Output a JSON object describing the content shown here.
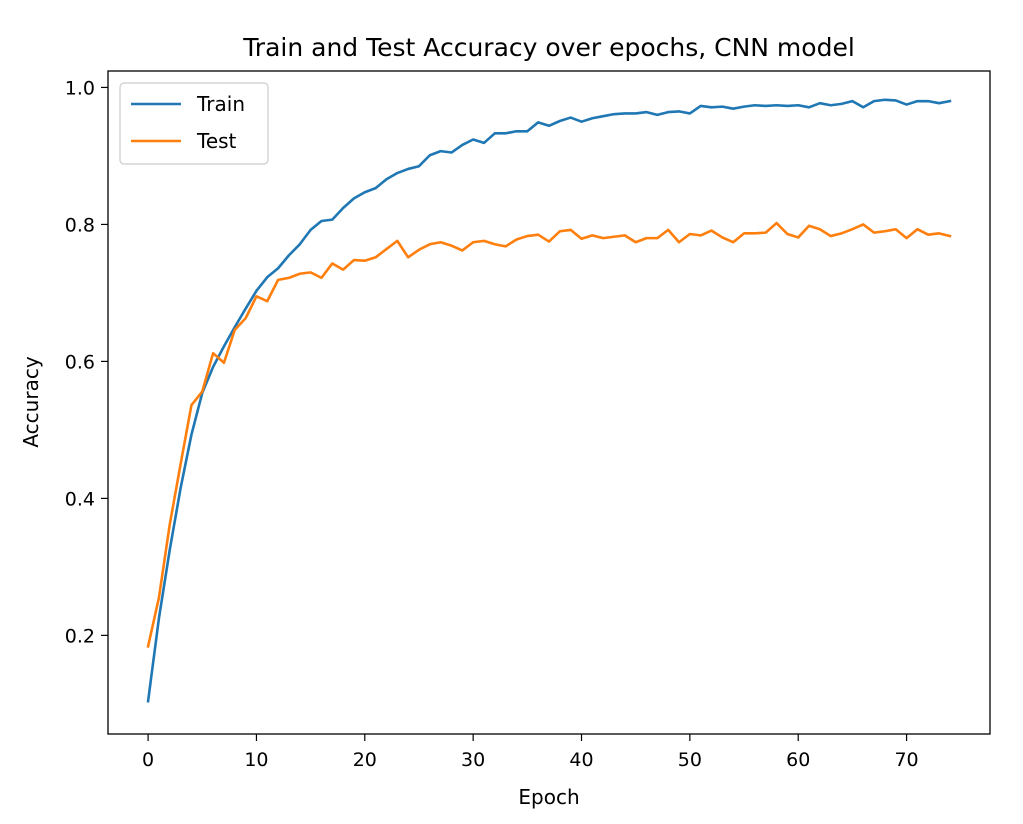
{
  "chart_data": {
    "type": "line",
    "title": "Train and Test Accuracy over epochs, CNN model",
    "xlabel": "Epoch",
    "ylabel": "Accuracy",
    "xlim": [
      -3.7,
      77.7
    ],
    "ylim": [
      0.056,
      1.024
    ],
    "xticks": [
      0,
      10,
      20,
      30,
      40,
      50,
      60,
      70
    ],
    "yticks": [
      0.2,
      0.4,
      0.6,
      0.8,
      1.0
    ],
    "xtick_labels": [
      "0",
      "10",
      "20",
      "30",
      "40",
      "50",
      "60",
      "70"
    ],
    "ytick_labels": [
      "0.2",
      "0.4",
      "0.6",
      "0.8",
      "1.0"
    ],
    "grid": false,
    "legend_position": "top-left",
    "x": [
      0,
      1,
      2,
      3,
      4,
      5,
      6,
      7,
      8,
      9,
      10,
      11,
      12,
      13,
      14,
      15,
      16,
      17,
      18,
      19,
      20,
      21,
      22,
      23,
      24,
      25,
      26,
      27,
      28,
      29,
      30,
      31,
      32,
      33,
      34,
      35,
      36,
      37,
      38,
      39,
      40,
      41,
      42,
      43,
      44,
      45,
      46,
      47,
      48,
      49,
      50,
      51,
      52,
      53,
      54,
      55,
      56,
      57,
      58,
      59,
      60,
      61,
      62,
      63,
      64,
      65,
      66,
      67,
      68,
      69,
      70,
      71,
      72,
      73,
      74
    ],
    "series": [
      {
        "name": "Train",
        "color": "#1f77b4",
        "values": [
          0.104,
          0.225,
          0.325,
          0.415,
          0.493,
          0.554,
          0.592,
          0.622,
          0.65,
          0.677,
          0.703,
          0.723,
          0.736,
          0.755,
          0.771,
          0.792,
          0.805,
          0.807,
          0.824,
          0.838,
          0.847,
          0.853,
          0.866,
          0.875,
          0.881,
          0.885,
          0.901,
          0.907,
          0.905,
          0.916,
          0.924,
          0.919,
          0.933,
          0.933,
          0.936,
          0.936,
          0.949,
          0.944,
          0.951,
          0.956,
          0.95,
          0.955,
          0.958,
          0.961,
          0.962,
          0.962,
          0.964,
          0.96,
          0.964,
          0.965,
          0.962,
          0.973,
          0.971,
          0.972,
          0.969,
          0.972,
          0.974,
          0.973,
          0.974,
          0.973,
          0.974,
          0.971,
          0.977,
          0.974,
          0.976,
          0.98,
          0.971,
          0.98,
          0.982,
          0.981,
          0.975,
          0.98,
          0.98,
          0.977,
          0.98
        ]
      },
      {
        "name": "Test",
        "color": "#ff7f0e",
        "values": [
          0.184,
          0.255,
          0.362,
          0.45,
          0.536,
          0.556,
          0.612,
          0.598,
          0.646,
          0.663,
          0.695,
          0.688,
          0.719,
          0.722,
          0.728,
          0.73,
          0.722,
          0.743,
          0.734,
          0.748,
          0.747,
          0.752,
          0.764,
          0.776,
          0.752,
          0.763,
          0.771,
          0.774,
          0.769,
          0.762,
          0.774,
          0.776,
          0.771,
          0.768,
          0.778,
          0.783,
          0.785,
          0.775,
          0.79,
          0.792,
          0.779,
          0.784,
          0.78,
          0.782,
          0.784,
          0.774,
          0.78,
          0.78,
          0.792,
          0.774,
          0.786,
          0.784,
          0.791,
          0.781,
          0.774,
          0.787,
          0.787,
          0.788,
          0.802,
          0.786,
          0.781,
          0.798,
          0.793,
          0.783,
          0.787,
          0.793,
          0.8,
          0.788,
          0.79,
          0.793,
          0.78,
          0.793,
          0.785,
          0.787,
          0.783
        ]
      }
    ]
  }
}
